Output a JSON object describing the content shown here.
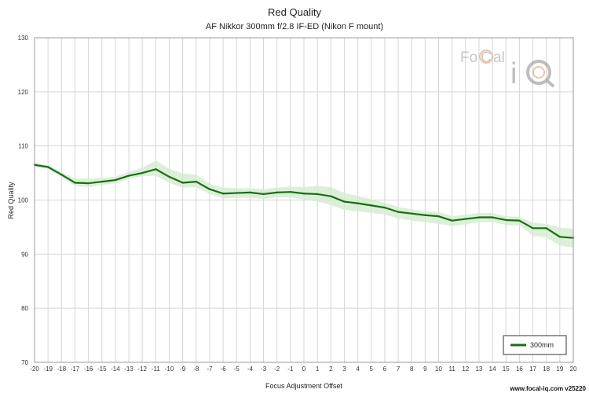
{
  "chart_data": {
    "type": "line",
    "title": "Red Quality",
    "subtitle": "AF Nikkor 300mm f/2.8 IF-ED (Nikon F mount)",
    "xlabel": "Focus Adjustment Offset",
    "ylabel": "Red Quality",
    "xlim": [
      -20,
      20
    ],
    "ylim": [
      70,
      130
    ],
    "x": [
      -20,
      -19,
      -18,
      -17,
      -16,
      -15,
      -14,
      -13,
      -12,
      -11,
      -10,
      -9,
      -8,
      -7,
      -6,
      -5,
      -4,
      -3,
      -2,
      -1,
      0,
      1,
      2,
      3,
      4,
      5,
      6,
      7,
      8,
      9,
      10,
      11,
      12,
      13,
      14,
      15,
      16,
      17,
      18,
      19,
      20
    ],
    "x_tick_labels": [
      "-20",
      "-19",
      "-18",
      "-17",
      "-16",
      "-15",
      "-14",
      "-13",
      "-12",
      "-11",
      "-10",
      "-9",
      "-8",
      "-7",
      "-6",
      "-5",
      "-4",
      "-3",
      "-2",
      "-1",
      "0",
      "1",
      "2",
      "3",
      "4",
      "5",
      "6",
      "7",
      "8",
      "9",
      "10",
      "11",
      "12",
      "13",
      "14",
      "15",
      "16",
      "17",
      "18",
      "19",
      "20"
    ],
    "y_ticks": [
      70,
      80,
      90,
      100,
      110,
      120,
      130
    ],
    "y_tick_labels": [
      "70",
      "80",
      "90",
      "100",
      "110",
      "120",
      "130"
    ],
    "grid": true,
    "series": [
      {
        "name": "300mm",
        "color": "#1a6e12",
        "band_color": "#d3ecd0",
        "values": [
          106.5,
          106.1,
          104.7,
          103.2,
          103.1,
          103.4,
          103.7,
          104.5,
          105.0,
          105.7,
          104.3,
          103.2,
          103.4,
          102.0,
          101.2,
          101.3,
          101.4,
          101.1,
          101.4,
          101.5,
          101.2,
          101.1,
          100.7,
          99.7,
          99.4,
          99.0,
          98.6,
          97.8,
          97.5,
          97.2,
          97.0,
          96.2,
          96.5,
          96.8,
          96.8,
          96.3,
          96.2,
          94.8,
          94.8,
          93.2,
          93.0
        ],
        "upper": [
          106.9,
          106.4,
          105.2,
          104.0,
          104.0,
          104.1,
          104.3,
          105.2,
          106.0,
          107.3,
          105.8,
          104.9,
          104.7,
          103.0,
          102.3,
          102.2,
          102.2,
          102.0,
          102.3,
          102.5,
          102.4,
          102.6,
          102.4,
          101.3,
          100.8,
          100.1,
          99.5,
          98.7,
          98.3,
          97.9,
          97.8,
          97.0,
          97.3,
          97.6,
          97.6,
          97.0,
          96.9,
          95.8,
          95.6,
          94.9,
          94.7
        ],
        "lower": [
          106.1,
          105.8,
          104.2,
          102.6,
          102.4,
          102.8,
          103.1,
          103.9,
          104.4,
          104.5,
          103.2,
          102.3,
          102.4,
          101.1,
          100.3,
          100.4,
          100.4,
          100.2,
          100.5,
          100.5,
          100.1,
          99.7,
          99.1,
          98.2,
          97.9,
          97.6,
          97.3,
          96.6,
          96.2,
          95.9,
          95.6,
          95.2,
          95.5,
          95.9,
          95.9,
          95.4,
          95.3,
          93.4,
          93.1,
          91.6,
          91.2
        ]
      }
    ],
    "legend": {
      "position": "bottom-right",
      "entries": [
        "300mm"
      ]
    }
  },
  "watermark": {
    "brand": "Focal iQ"
  },
  "footer": {
    "text": "www.focal-iq.com  v25220"
  }
}
